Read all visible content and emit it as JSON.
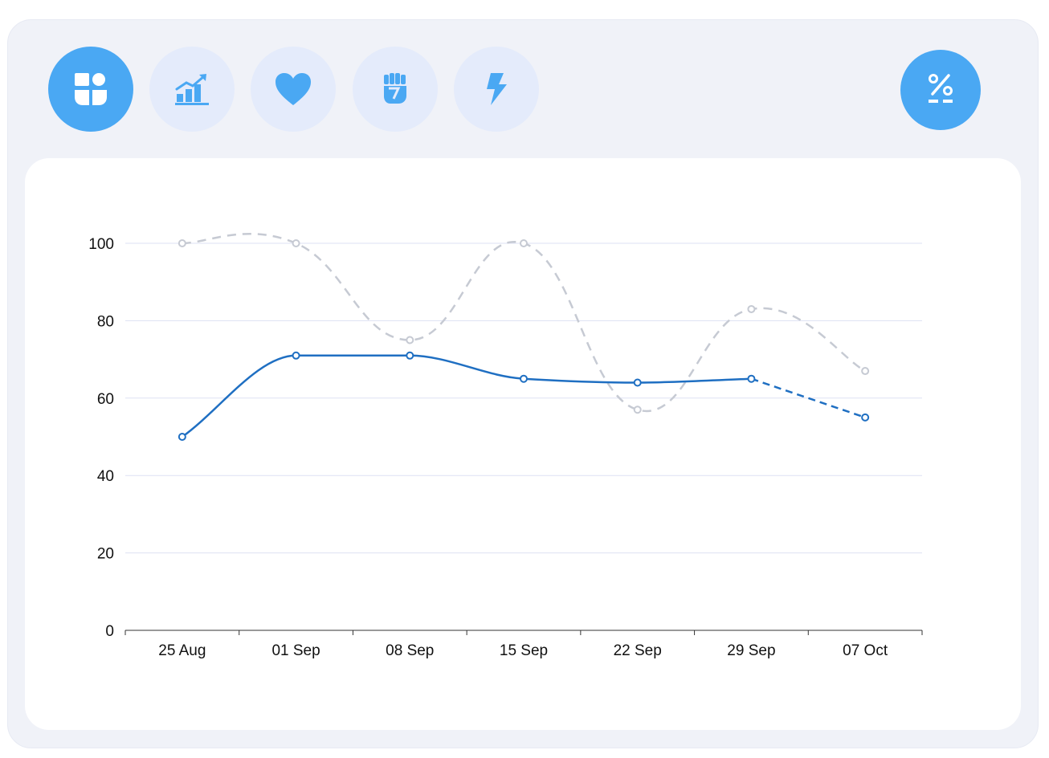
{
  "toolbar": {
    "buttons": [
      {
        "icon": "dashboard-icon",
        "active": true
      },
      {
        "icon": "growth-chart-icon",
        "active": false
      },
      {
        "icon": "heart-icon",
        "active": false
      },
      {
        "icon": "fist-icon",
        "active": false
      },
      {
        "icon": "lightning-icon",
        "active": false
      }
    ],
    "percent_button": {
      "icon": "percent-icon"
    }
  },
  "colors": {
    "accent": "#4aa8f3",
    "button_inactive": "#e4ebfb",
    "icon_inactive": "#4aa8f3",
    "primary_series": "#1f6fc2",
    "comparison_series": "#c6cad3",
    "gridline": "#dde1f3"
  },
  "chart_data": {
    "type": "line",
    "categories": [
      "25 Aug",
      "01 Sep",
      "08 Sep",
      "15 Sep",
      "22 Sep",
      "29 Sep",
      "07 Oct"
    ],
    "ylim": [
      0,
      100
    ],
    "yticks": [
      0,
      20,
      40,
      60,
      80,
      100
    ],
    "grid": true,
    "legend": "none",
    "series": [
      {
        "values": [
          100,
          100,
          75,
          100,
          57,
          83,
          67
        ],
        "style": "dashed"
      },
      {
        "values": [
          50,
          71,
          71,
          65,
          64,
          65,
          55
        ],
        "style": "solid",
        "dashed_last_segment": true
      }
    ]
  }
}
